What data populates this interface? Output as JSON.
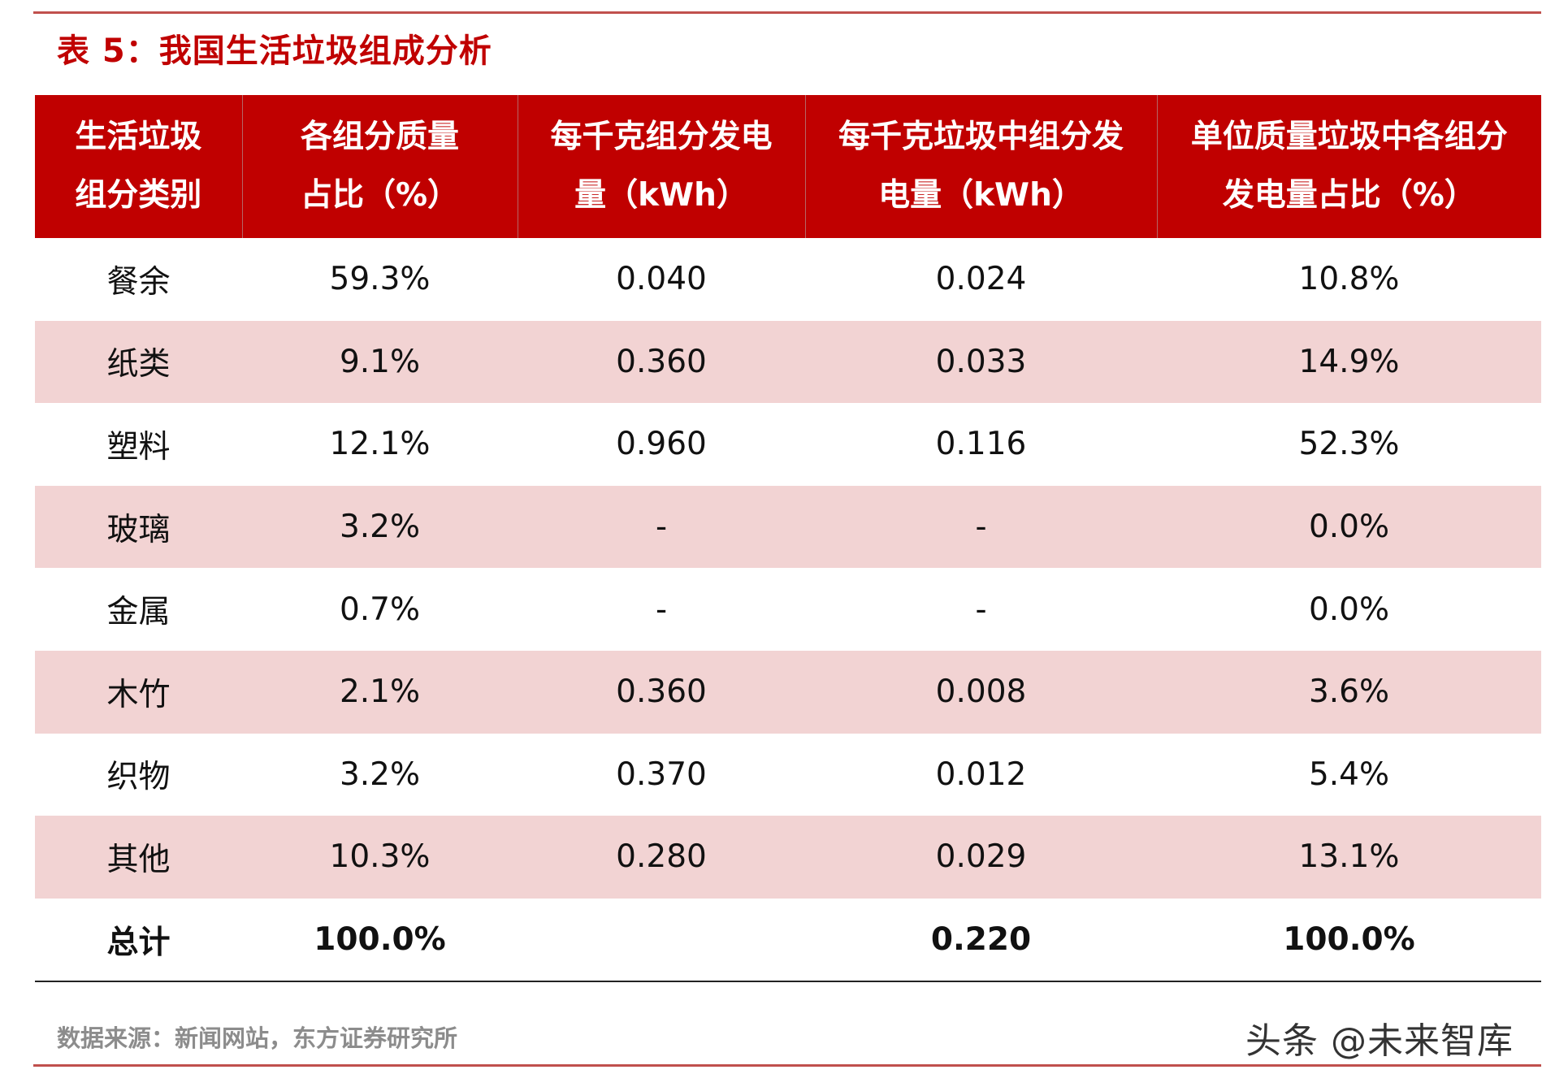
{
  "title": "表 5：我国生活垃圾组成分析",
  "headers": [
    [
      "生活垃圾",
      "组分类别"
    ],
    [
      "各组分质量",
      "占比（%）"
    ],
    [
      "每千克组分发电",
      "量（kWh）"
    ],
    [
      "每千克垃圾中组分发",
      "电量（kWh）"
    ],
    [
      "单位质量垃圾中各组分",
      "发电量占比（%）"
    ]
  ],
  "rows": [
    [
      "餐余",
      "59.3%",
      "0.040",
      "0.024",
      "10.8%"
    ],
    [
      "纸类",
      "9.1%",
      "0.360",
      "0.033",
      "14.9%"
    ],
    [
      "塑料",
      "12.1%",
      "0.960",
      "0.116",
      "52.3%"
    ],
    [
      "玻璃",
      "3.2%",
      "-",
      "-",
      "0.0%"
    ],
    [
      "金属",
      "0.7%",
      "-",
      "-",
      "0.0%"
    ],
    [
      "木竹",
      "2.1%",
      "0.360",
      "0.008",
      "3.6%"
    ],
    [
      "织物",
      "3.2%",
      "0.370",
      "0.012",
      "5.4%"
    ],
    [
      "其他",
      "10.3%",
      "0.280",
      "0.029",
      "13.1%"
    ]
  ],
  "total": [
    "总计",
    "100.0%",
    "",
    "0.220",
    "100.0%"
  ],
  "source": "数据来源：新闻网站，东方证券研究所",
  "watermark": "头条 @未来智库",
  "colors": {
    "header_bg": "#c00000",
    "title": "#c00000",
    "stripe": "#f2d3d3",
    "rule": "#c0504d"
  }
}
